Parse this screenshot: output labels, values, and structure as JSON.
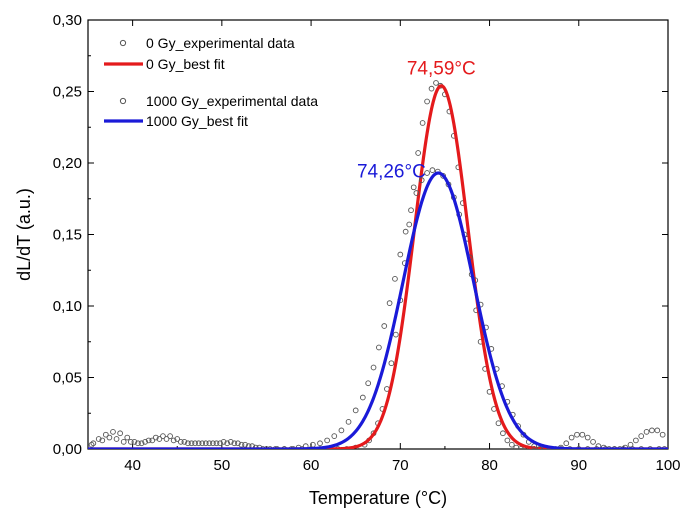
{
  "chart_data": {
    "type": "line",
    "title": "",
    "xlabel": "Temperature (°C)",
    "ylabel": "dL/dT (a.u.)",
    "xlim": [
      35,
      100
    ],
    "ylim": [
      0,
      0.3
    ],
    "x_ticks": [
      "40",
      "50",
      "60",
      "70",
      "80",
      "90",
      "100"
    ],
    "x_tick_values": [
      40,
      50,
      60,
      70,
      80,
      90,
      100
    ],
    "y_ticks": [
      "0,00",
      "0,05",
      "0,10",
      "0,15",
      "0,20",
      "0,25",
      "0,30"
    ],
    "y_tick_values": [
      0,
      0.05,
      0.1,
      0.15,
      0.2,
      0.25,
      0.3
    ],
    "grid": false,
    "legend_position": "top-left",
    "series": [
      {
        "name": "0 Gy_experimental data",
        "kind": "scatter",
        "marker": "open-circle",
        "color": "#555555",
        "x": [
          35.6,
          36.6,
          37.4,
          38.2,
          39.0,
          39.8,
          40.6,
          41.4,
          42.2,
          43.0,
          43.8,
          44.6,
          45.4,
          46.2,
          47.0,
          47.8,
          48.6,
          49.4,
          50.2,
          51.0,
          51.8,
          52.6,
          53.4,
          54.2,
          55.0,
          56.0,
          57.0,
          58.0,
          59.0,
          60.0,
          61.0,
          62.0,
          63.0,
          64.0,
          65.0,
          66.0,
          66.5,
          67.0,
          67.5,
          68.0,
          68.5,
          69.0,
          69.5,
          70.0,
          70.5,
          71.0,
          71.5,
          72.0,
          72.5,
          73.0,
          73.5,
          74.0,
          74.5,
          75.0,
          75.5,
          76.0,
          76.5,
          77.0,
          77.5,
          78.0,
          78.5,
          79.0,
          79.5,
          80.0,
          80.5,
          81.0,
          81.5,
          82.0,
          82.5,
          83.0,
          83.5,
          84.0,
          84.5,
          85.0,
          86.0,
          87.0,
          88.0,
          89.0,
          90.0,
          91.0,
          92.0,
          93.0,
          94.0,
          95.0,
          96.0,
          97.0,
          98.0,
          99.0,
          99.6
        ],
        "y": [
          0.004,
          0.006,
          0.008,
          0.007,
          0.005,
          0.005,
          0.004,
          0.005,
          0.006,
          0.007,
          0.007,
          0.006,
          0.005,
          0.004,
          0.004,
          0.004,
          0.004,
          0.004,
          0.005,
          0.005,
          0.004,
          0.003,
          0.002,
          0.001,
          0.0,
          0.0,
          0.0,
          0.0,
          0.0,
          0.0,
          0.0,
          0.0,
          0.0,
          0.0,
          0.001,
          0.003,
          0.006,
          0.011,
          0.018,
          0.028,
          0.042,
          0.06,
          0.08,
          0.104,
          0.13,
          0.157,
          0.183,
          0.207,
          0.228,
          0.243,
          0.252,
          0.256,
          0.254,
          0.248,
          0.236,
          0.219,
          0.197,
          0.172,
          0.147,
          0.122,
          0.097,
          0.075,
          0.056,
          0.04,
          0.028,
          0.018,
          0.011,
          0.006,
          0.003,
          0.001,
          0.0,
          0.0,
          0.0,
          0.0,
          0.0,
          0.0,
          0.0,
          0.0,
          0.0,
          0.0,
          0.0,
          0.0,
          0.0,
          0.0,
          0.0,
          0.0,
          0.0,
          0.0,
          0.0
        ]
      },
      {
        "name": "0 Gy_best fit",
        "kind": "line",
        "color": "#e41a1c",
        "peak": 0.254,
        "center": 74.59,
        "sigma": 3.0
      },
      {
        "name": "1000 Gy_experimental data",
        "kind": "scatter",
        "marker": "open-circle",
        "color": "#555555",
        "x": [
          35.4,
          36.2,
          37.0,
          37.8,
          38.6,
          39.4,
          40.2,
          41.0,
          41.8,
          42.6,
          43.4,
          44.2,
          45.0,
          45.8,
          46.6,
          47.4,
          48.2,
          49.0,
          49.8,
          50.6,
          51.4,
          52.2,
          53.0,
          53.8,
          54.6,
          55.4,
          56.2,
          57.0,
          57.8,
          58.6,
          59.4,
          60.2,
          61.0,
          61.8,
          62.6,
          63.4,
          64.2,
          65.0,
          65.8,
          66.4,
          67.0,
          67.6,
          68.2,
          68.8,
          69.4,
          70.0,
          70.6,
          71.2,
          71.8,
          72.4,
          73.0,
          73.6,
          74.2,
          74.8,
          75.4,
          76.0,
          76.6,
          77.2,
          77.8,
          78.4,
          79.0,
          79.6,
          80.2,
          80.8,
          81.4,
          82.0,
          82.6,
          83.2,
          83.8,
          84.4,
          85.0,
          85.6,
          86.2,
          86.8,
          87.4,
          88.0,
          88.6,
          89.2,
          89.8,
          90.4,
          91.0,
          91.6,
          92.2,
          92.8,
          93.4,
          94.0,
          94.6,
          95.2,
          95.8,
          96.4,
          97.0,
          97.6,
          98.2,
          98.8,
          99.4
        ],
        "y": [
          0.003,
          0.007,
          0.01,
          0.012,
          0.011,
          0.008,
          0.005,
          0.004,
          0.006,
          0.008,
          0.009,
          0.009,
          0.007,
          0.005,
          0.004,
          0.004,
          0.004,
          0.004,
          0.004,
          0.004,
          0.004,
          0.003,
          0.002,
          0.001,
          0.0,
          0.0,
          0.0,
          0.0,
          0.0,
          0.001,
          0.002,
          0.003,
          0.004,
          0.006,
          0.009,
          0.013,
          0.019,
          0.027,
          0.036,
          0.046,
          0.057,
          0.071,
          0.086,
          0.102,
          0.119,
          0.136,
          0.152,
          0.167,
          0.179,
          0.188,
          0.193,
          0.195,
          0.194,
          0.191,
          0.185,
          0.176,
          0.164,
          0.15,
          0.134,
          0.118,
          0.101,
          0.085,
          0.07,
          0.056,
          0.044,
          0.033,
          0.024,
          0.016,
          0.01,
          0.005,
          0.002,
          0.0,
          0.0,
          0.0,
          0.0,
          0.001,
          0.004,
          0.008,
          0.01,
          0.01,
          0.008,
          0.005,
          0.002,
          0.001,
          0.0,
          0.0,
          0.0,
          0.001,
          0.003,
          0.006,
          0.009,
          0.012,
          0.013,
          0.013,
          0.01
        ]
      },
      {
        "name": "1000 Gy_best fit",
        "kind": "line",
        "color": "#1a1ad8",
        "peak": 0.193,
        "center": 74.26,
        "sigma": 3.95
      }
    ],
    "annotations": [
      {
        "text": "74,59°C",
        "x": 74.59,
        "y": 0.262,
        "color": "#e41a1c"
      },
      {
        "text": "74,26°C",
        "x": 69.0,
        "y": 0.19,
        "color": "#1a1ad8"
      }
    ]
  }
}
